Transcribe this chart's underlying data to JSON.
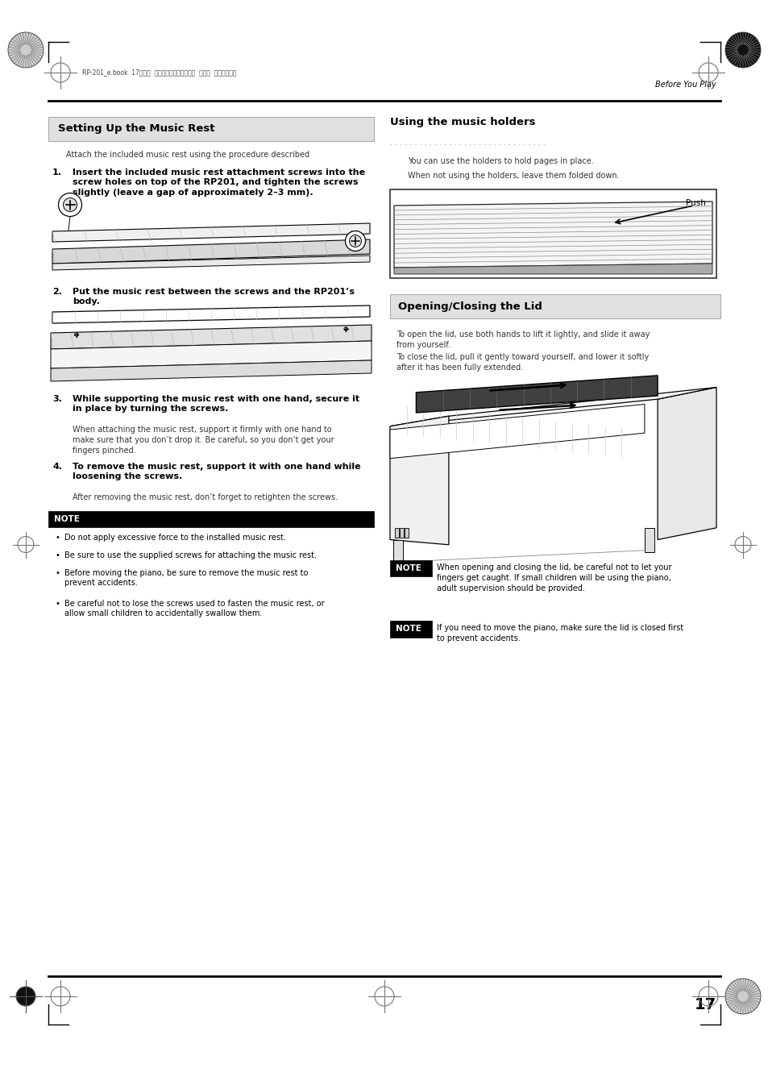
{
  "bg_color": "#ffffff",
  "page_width": 9.54,
  "page_height": 13.51,
  "header_text": "RP-201_e.book  17ページ  ２００９年１１月２０日  金曜日  午後２時３分",
  "header_right": "Before You Play",
  "page_number": "17",
  "section1_title": "Setting Up the Music Rest",
  "section1_intro": "Attach the included music rest using the procedure described",
  "step1_bold": "Insert the included music rest attachment screws into the\nscrew holes on top of the RP201, and tighten the screws\nslightly (leave a gap of approximately 2–3 mm).",
  "step2_bold": "Put the music rest between the screws and the RP201’s\nbody.",
  "step3_bold": "While supporting the music rest with one hand, secure it\nin place by turning the screws.",
  "step3_text": "When attaching the music rest, support it firmly with one hand to\nmake sure that you don’t drop it. Be careful, so you don’t get your\nfingers pinched.",
  "step4_bold": "To remove the music rest, support it with one hand while\nloosening the screws.",
  "step4_text": "After removing the music rest, don’t forget to retighten the screws.",
  "note_label": "NOTE",
  "note_bullet1": "Do not apply excessive force to the installed music rest.",
  "note_bullet2": "Be sure to use the supplied screws for attaching the music rest.",
  "note_bullet3": "Before moving the piano, be sure to remove the music rest to\nprevent accidents.",
  "note_bullet4": "Be careful not to lose the screws used to fasten the music rest, or\nallow small children to accidentally swallow them.",
  "section2_title": "Using the music holders",
  "section2_text1": "You can use the holders to hold pages in place.",
  "section2_text2": "When not using the holders, leave them folded down.",
  "push_label": "Push",
  "section3_title": "Opening/Closing the Lid",
  "section3_text1": "To open the lid, use both hands to lift it lightly, and slide it away\nfrom yourself.",
  "section3_text2": "To close the lid, pull it gently toward yourself, and lower it softly\nafter it has been fully extended.",
  "note2_text": "When opening and closing the lid, be careful not to let your\nfingers get caught. If small children will be using the piano,\nadult supervision should be provided.",
  "note3_text": "If you need to move the piano, make sure the lid is closed first\nto prevent accidents."
}
